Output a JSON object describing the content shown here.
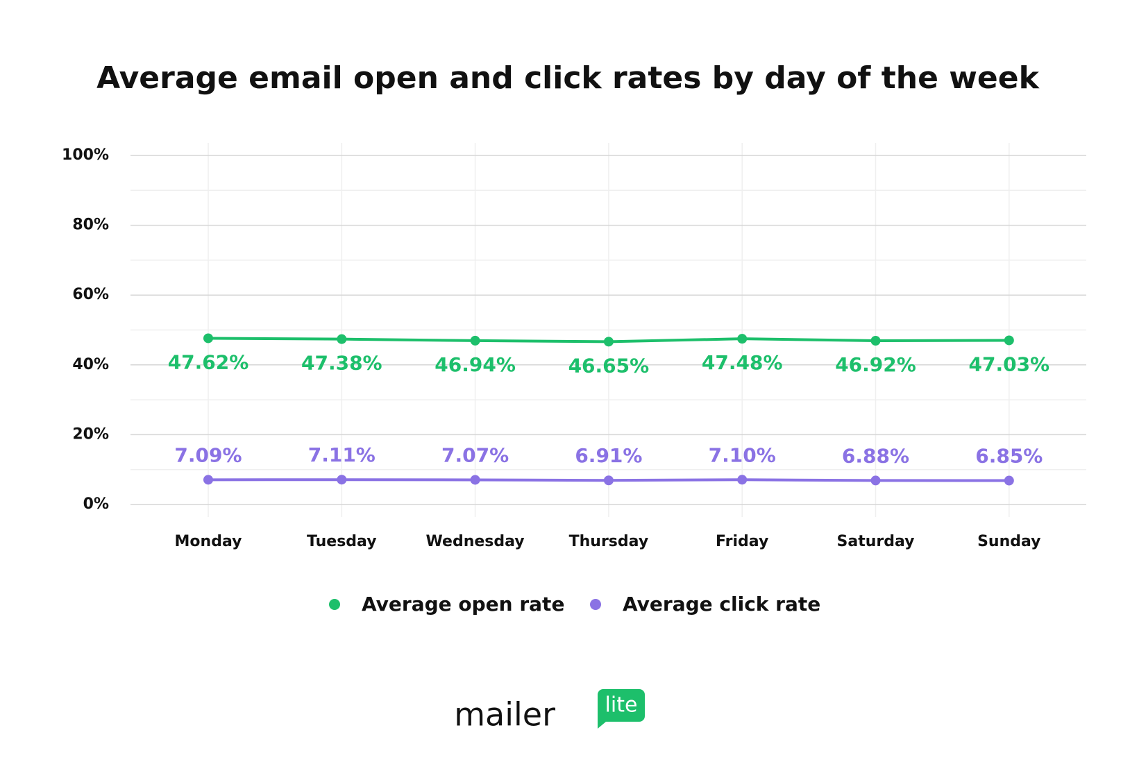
{
  "chart_data": {
    "type": "line",
    "title": "Average email open and click rates by day of the week",
    "categories": [
      "Monday",
      "Tuesday",
      "Wednesday",
      "Thursday",
      "Friday",
      "Saturday",
      "Sunday"
    ],
    "series": [
      {
        "name": "Average open rate",
        "color": "#1dbf6b",
        "values": [
          47.62,
          47.38,
          46.94,
          46.65,
          47.48,
          46.92,
          47.03
        ],
        "value_labels": [
          "47.62%",
          "47.38%",
          "46.94%",
          "46.65%",
          "47.48%",
          "46.92%",
          "47.03%"
        ]
      },
      {
        "name": "Average click rate",
        "color": "#8a72e4",
        "values": [
          7.09,
          7.11,
          7.07,
          6.91,
          7.1,
          6.88,
          6.85
        ],
        "value_labels": [
          "7.09%",
          "7.11%",
          "7.07%",
          "6.91%",
          "7.10%",
          "6.88%",
          "6.85%"
        ]
      }
    ],
    "ylim": [
      0,
      100
    ],
    "yticks": [
      {
        "value": 0,
        "label": "0%"
      },
      {
        "value": 20,
        "label": "20%"
      },
      {
        "value": 40,
        "label": "40%"
      },
      {
        "value": 60,
        "label": "60%"
      },
      {
        "value": 80,
        "label": "80%"
      },
      {
        "value": 100,
        "label": "100%"
      }
    ],
    "grid": true,
    "legend": "bottom"
  },
  "logo": {
    "text": "mailer",
    "badge": "lite"
  }
}
